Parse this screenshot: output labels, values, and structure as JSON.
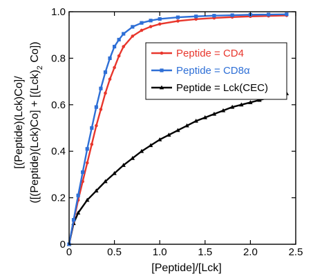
{
  "chart_data": {
    "type": "line",
    "xlabel": "[Peptide]/[Lck]",
    "ylabel_lines": [
      "[(Peptide)(Lck)Co]/",
      "([(Peptide)(Lck)Co] + [(Lck)",
      "2",
      " Co])"
    ],
    "xlim": [
      0,
      2.5
    ],
    "ylim": [
      0,
      1.0
    ],
    "xticks": [
      0,
      0.5,
      1.0,
      1.5,
      2.0,
      2.5
    ],
    "xtick_labels": [
      "0",
      "0.5",
      "1.0",
      "1.5",
      "2.0",
      "2.5"
    ],
    "yticks": [
      0,
      0.2,
      0.4,
      0.6,
      0.8,
      1.0
    ],
    "ytick_labels": [
      "0",
      "0.2",
      "0.4",
      "0.6",
      "0.8",
      "1.0"
    ],
    "grid": false,
    "legend_position": "top-right",
    "series": [
      {
        "name": "Peptide = CD4",
        "color": "#e8362c",
        "marker": "dot",
        "points": [
          [
            0,
            0
          ],
          [
            0.05,
            0.1
          ],
          [
            0.1,
            0.19
          ],
          [
            0.15,
            0.27
          ],
          [
            0.2,
            0.35
          ],
          [
            0.25,
            0.43
          ],
          [
            0.3,
            0.51
          ],
          [
            0.35,
            0.58
          ],
          [
            0.4,
            0.65
          ],
          [
            0.45,
            0.71
          ],
          [
            0.5,
            0.76
          ],
          [
            0.55,
            0.81
          ],
          [
            0.6,
            0.85
          ],
          [
            0.7,
            0.895
          ],
          [
            0.8,
            0.92
          ],
          [
            0.9,
            0.936
          ],
          [
            1.0,
            0.947
          ],
          [
            1.2,
            0.96
          ],
          [
            1.4,
            0.968
          ],
          [
            1.6,
            0.973
          ],
          [
            1.8,
            0.977
          ],
          [
            2.0,
            0.98
          ],
          [
            2.2,
            0.982
          ],
          [
            2.4,
            0.984
          ]
        ]
      },
      {
        "name": "Peptide = CD8α",
        "color": "#2e6fd6",
        "marker": "square",
        "points": [
          [
            0,
            0
          ],
          [
            0.05,
            0.105
          ],
          [
            0.1,
            0.21
          ],
          [
            0.15,
            0.31
          ],
          [
            0.2,
            0.41
          ],
          [
            0.25,
            0.5
          ],
          [
            0.3,
            0.59
          ],
          [
            0.35,
            0.67
          ],
          [
            0.4,
            0.74
          ],
          [
            0.45,
            0.8
          ],
          [
            0.5,
            0.85
          ],
          [
            0.55,
            0.88
          ],
          [
            0.6,
            0.905
          ],
          [
            0.7,
            0.935
          ],
          [
            0.8,
            0.952
          ],
          [
            0.9,
            0.962
          ],
          [
            1.0,
            0.969
          ],
          [
            1.2,
            0.976
          ],
          [
            1.4,
            0.98
          ],
          [
            1.6,
            0.983
          ],
          [
            1.8,
            0.985
          ],
          [
            2.0,
            0.987
          ],
          [
            2.2,
            0.988
          ],
          [
            2.4,
            0.989
          ]
        ]
      },
      {
        "name": "Peptide = Lck(CEC)",
        "color": "#000000",
        "marker": "triangle",
        "points": [
          [
            0,
            0
          ],
          [
            0.05,
            0.09
          ],
          [
            0.1,
            0.135
          ],
          [
            0.2,
            0.19
          ],
          [
            0.3,
            0.23
          ],
          [
            0.4,
            0.27
          ],
          [
            0.5,
            0.305
          ],
          [
            0.6,
            0.34
          ],
          [
            0.7,
            0.37
          ],
          [
            0.8,
            0.4
          ],
          [
            0.9,
            0.425
          ],
          [
            1.0,
            0.45
          ],
          [
            1.1,
            0.47
          ],
          [
            1.2,
            0.49
          ],
          [
            1.3,
            0.51
          ],
          [
            1.4,
            0.53
          ],
          [
            1.5,
            0.545
          ],
          [
            1.6,
            0.56
          ],
          [
            1.7,
            0.575
          ],
          [
            1.8,
            0.59
          ],
          [
            1.9,
            0.6
          ],
          [
            2.0,
            0.61
          ],
          [
            2.1,
            0.62
          ],
          [
            2.2,
            0.63
          ],
          [
            2.3,
            0.64
          ],
          [
            2.4,
            0.648
          ]
        ]
      }
    ]
  }
}
